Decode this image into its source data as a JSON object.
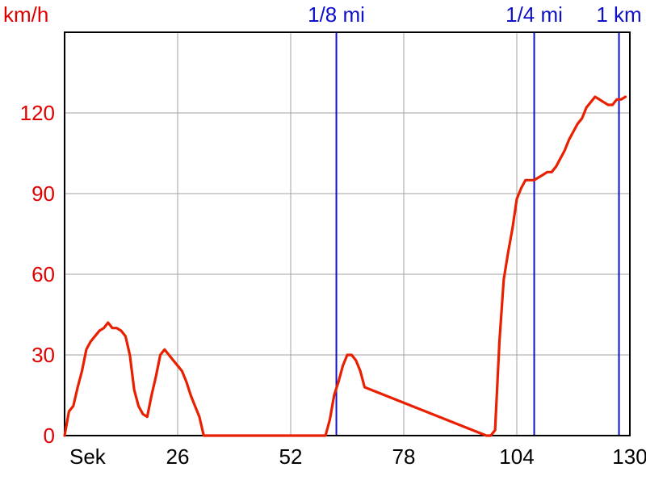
{
  "chart_data": {
    "type": "line",
    "ylabel": "km/h",
    "xlabel": "Sek",
    "xlim": [
      0,
      130
    ],
    "ylim": [
      0,
      150
    ],
    "x_ticks": [
      26,
      52,
      78,
      104,
      130
    ],
    "y_ticks": [
      0,
      30,
      60,
      90,
      120
    ],
    "grid": true,
    "colors": {
      "line": "#e82000",
      "markers": "#1010c8",
      "grid": "#a0a0a0",
      "y_text": "#e00000"
    },
    "markers": [
      {
        "label": "1/8 mi",
        "x": 62.5
      },
      {
        "label": "1/4 mi",
        "x": 108
      },
      {
        "label": "1 km",
        "x": 127.5
      }
    ],
    "series": [
      {
        "x": [
          0,
          1,
          2,
          3,
          4,
          5,
          6,
          7,
          8,
          9,
          10,
          11,
          12,
          13,
          14,
          15,
          16,
          17,
          18,
          19,
          20,
          21,
          22,
          23,
          24,
          25,
          26,
          27,
          28,
          29,
          30,
          31,
          32,
          33,
          34,
          35,
          60,
          61,
          62,
          63,
          64,
          65,
          66,
          67,
          68,
          69,
          97,
          98,
          99,
          100,
          101,
          102,
          103,
          104,
          105,
          106,
          107,
          108,
          109,
          110,
          111,
          112,
          113,
          114,
          115,
          116,
          117,
          118,
          119,
          120,
          121,
          122,
          123,
          124,
          125,
          126,
          127,
          128,
          129
        ],
        "y": [
          0,
          9,
          11,
          18,
          24,
          32,
          35,
          37,
          39,
          40,
          42,
          40,
          40,
          39,
          37,
          30,
          17,
          11,
          8,
          7,
          15,
          22,
          30,
          32,
          30,
          28,
          26,
          24,
          20,
          15,
          11,
          7,
          0,
          0,
          0,
          0,
          0,
          6,
          15,
          20,
          26,
          30,
          30,
          28,
          24,
          18,
          0,
          0,
          2,
          35,
          58,
          68,
          77,
          88,
          92,
          95,
          95,
          95,
          96,
          97,
          98,
          98,
          100,
          103,
          106,
          110,
          113,
          116,
          118,
          122,
          124,
          126,
          125,
          124,
          123,
          123,
          125,
          125,
          126
        ]
      }
    ]
  }
}
